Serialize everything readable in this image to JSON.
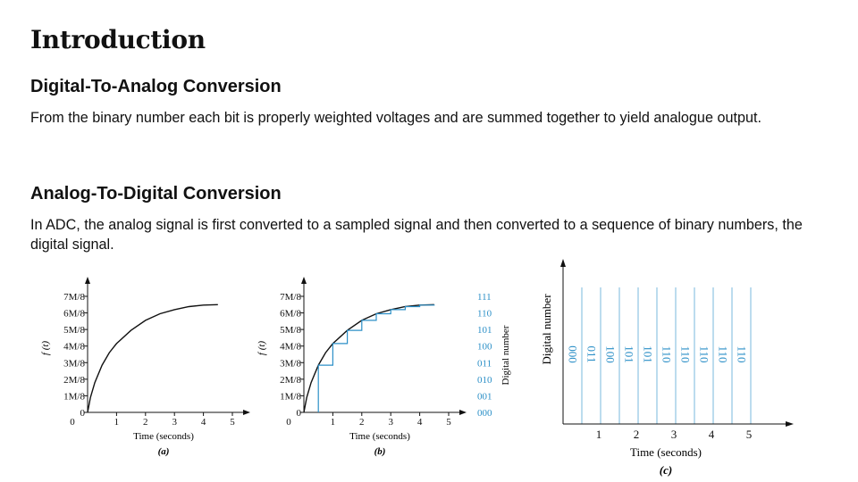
{
  "page": {
    "title": "Introduction",
    "section1": {
      "heading": "Digital-To-Analog Conversion",
      "text": "From the binary number each bit is properly  weighted voltages and are summed together to yield analogue output."
    },
    "section2": {
      "heading": "Analog-To-Digital Conversion",
      "text": "In ADC, the analog signal is first converted to a sampled signal and then converted to a sequence of binary numbers, the digital signal."
    }
  },
  "colors": {
    "curve": "#111111",
    "staircase": "#2b8fc7",
    "binary_labels": "#2b8fc7",
    "grid": "#7ab8dd"
  },
  "chart_data": [
    {
      "type": "line",
      "caption": "(a)",
      "xlabel": "Time (seconds)",
      "ylabel": "f (t)",
      "xticks": [
        "0",
        "1",
        "2",
        "3",
        "4",
        "5"
      ],
      "yticks": [
        "0",
        "1M/8",
        "2M/8",
        "3M/8",
        "4M/8",
        "5M/8",
        "6M/8",
        "7M/8"
      ],
      "xlim": [
        0,
        5
      ],
      "ylim": [
        0,
        7
      ],
      "series": [
        {
          "x": [
            0,
            0.1,
            0.25,
            0.5,
            0.75,
            1,
            1.5,
            2,
            2.5,
            3,
            3.5,
            4,
            4.5
          ],
          "y": [
            0,
            0.9,
            1.8,
            2.85,
            3.6,
            4.15,
            4.95,
            5.55,
            5.95,
            6.2,
            6.38,
            6.47,
            6.5
          ]
        }
      ]
    },
    {
      "type": "line",
      "caption": "(b)",
      "xlabel": "Time (seconds)",
      "ylabel": "f (t)",
      "y2label": "Digital number",
      "xticks": [
        "0",
        "1",
        "2",
        "3",
        "4",
        "5"
      ],
      "yticks": [
        "0",
        "1M/8",
        "2M/8",
        "3M/8",
        "4M/8",
        "5M/8",
        "6M/8",
        "7M/8"
      ],
      "binary_labels": [
        "000",
        "001",
        "010",
        "011",
        "100",
        "101",
        "110",
        "111"
      ],
      "xlim": [
        0,
        5
      ],
      "ylim": [
        0,
        7
      ],
      "series": [
        {
          "x": [
            0,
            0.1,
            0.25,
            0.5,
            0.75,
            1,
            1.5,
            2,
            2.5,
            3,
            3.5,
            4,
            4.5
          ],
          "y": [
            0,
            0.9,
            1.8,
            2.85,
            3.6,
            4.15,
            4.95,
            5.55,
            5.95,
            6.2,
            6.38,
            6.47,
            6.5
          ]
        },
        {
          "x": [
            0.5,
            0.5,
            1,
            1,
            1.5,
            1.5,
            2,
            2,
            2.5,
            2.5,
            3,
            3,
            3.5,
            3.5,
            4,
            4,
            4.5,
            4.5
          ],
          "y": [
            0,
            2.85,
            2.85,
            4.15,
            4.15,
            4.95,
            4.95,
            5.55,
            5.55,
            5.95,
            5.95,
            6.2,
            6.2,
            6.38,
            6.38,
            6.47,
            6.47,
            6.5
          ]
        }
      ]
    },
    {
      "type": "table",
      "caption": "(c)",
      "xlabel": "Time (seconds)",
      "ylabel": "Digital number",
      "xticks": [
        "1",
        "2",
        "3",
        "4",
        "5"
      ],
      "codes": [
        "000",
        "011",
        "100",
        "101",
        "101",
        "110",
        "110",
        "110",
        "110",
        "110"
      ]
    }
  ]
}
